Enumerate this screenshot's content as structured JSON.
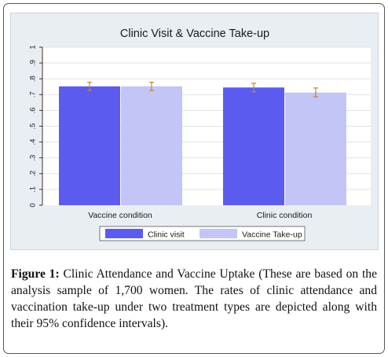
{
  "chart_data": {
    "type": "bar",
    "title": "Clinic Visit & Vaccine Take-up",
    "categories": [
      "Vaccine condition",
      "Clinic condition"
    ],
    "series": [
      {
        "name": "Clinic visit",
        "values": [
          0.752,
          0.745
        ],
        "ci": [
          [
            0.725,
            0.778
          ],
          [
            0.718,
            0.772
          ]
        ],
        "color": "#5b5bef"
      },
      {
        "name": "Vaccine Take-up",
        "values": [
          0.752,
          0.713
        ],
        "ci": [
          [
            0.725,
            0.778
          ],
          [
            0.685,
            0.742
          ]
        ],
        "color": "#c3c5f6"
      }
    ],
    "ylim": [
      0,
      1
    ],
    "yticks": [
      "0",
      ".1",
      ".2",
      ".3",
      ".4",
      ".5",
      ".6",
      ".7",
      ".8",
      ".9",
      "1"
    ],
    "grid": true,
    "legend_position": "bottom",
    "error_bar_color": "#c8862b"
  },
  "caption": {
    "label": "Figure 1:",
    "text": "Clinic Attendance and Vaccine Uptake (These are based on the analysis sample of 1,700 women. The rates of clinic attendance and vaccination take-up under two treatment types are depicted along with their 95% confidence intervals)."
  }
}
